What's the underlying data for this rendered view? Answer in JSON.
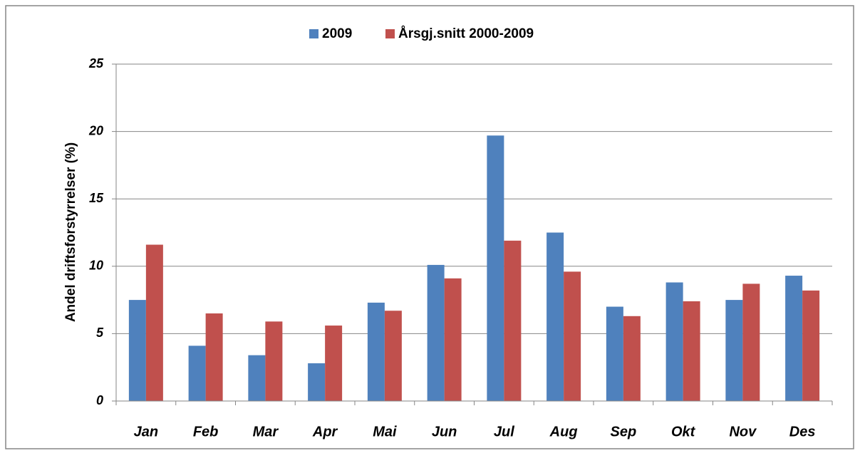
{
  "chart_data": {
    "type": "bar",
    "y_label": "Andel driftsforstyrrelser (%)",
    "categories": [
      "Jan",
      "Feb",
      "Mar",
      "Apr",
      "Mai",
      "Jun",
      "Jul",
      "Aug",
      "Sep",
      "Okt",
      "Nov",
      "Des"
    ],
    "series": [
      {
        "name": "2009",
        "color": "#4f81bd",
        "values": [
          7.5,
          4.1,
          3.4,
          2.8,
          7.3,
          10.1,
          19.7,
          12.5,
          7.0,
          8.8,
          7.5,
          9.3
        ]
      },
      {
        "name": "Årsgj.snitt 2000-2009",
        "color": "#c0504d",
        "values": [
          11.6,
          6.5,
          5.9,
          5.6,
          6.7,
          9.1,
          11.9,
          9.6,
          6.3,
          7.4,
          8.7,
          8.2
        ]
      }
    ],
    "ylim": [
      0,
      25
    ],
    "yticks": [
      0,
      5,
      10,
      15,
      20,
      25
    ],
    "grid": true,
    "legend": "top"
  }
}
